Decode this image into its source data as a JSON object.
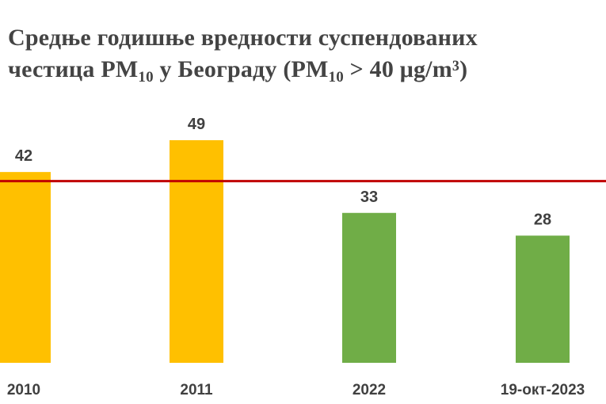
{
  "title": {
    "line1": "Средње годишње вредности суспендованих",
    "line2_a": "честица PM",
    "line2_sub1": "10",
    "line2_b": " у Београду  (PM",
    "line2_sub2": "10",
    "line2_c": " > 40 μg/m³)"
  },
  "chart_data": {
    "type": "bar",
    "title": "Средње годишње вредности суспендованих честица PM10 у Београду (PM10 > 40 μg/m³)",
    "categories": [
      "2010",
      "2011",
      "2022",
      "19-окт-2023"
    ],
    "values": [
      42,
      49,
      33,
      28
    ],
    "bar_colors": [
      "#FFC000",
      "#FFC000",
      "#70AD47",
      "#70AD47"
    ],
    "threshold": {
      "value": 40,
      "color": "#C00000"
    },
    "ylim": [
      0,
      49
    ],
    "grid": false,
    "legend": "none",
    "xlabel": "",
    "ylabel": ""
  }
}
